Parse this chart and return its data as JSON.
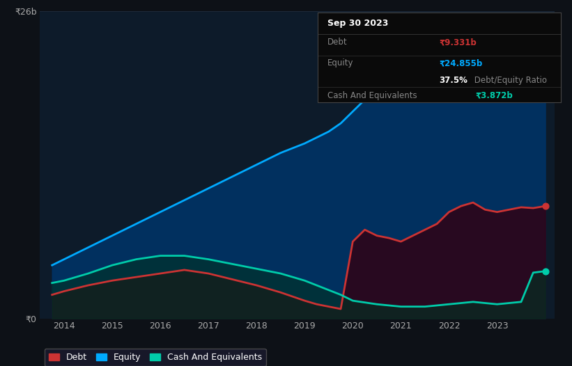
{
  "background_color": "#0d1117",
  "plot_bg": "#0d1b2a",
  "title_box": {
    "date": "Sep 30 2023",
    "rows": [
      {
        "label": "Debt",
        "value": "₹9.331b",
        "value_color": "#cc3333"
      },
      {
        "label": "Equity",
        "value": "₹24.855b",
        "value_color": "#00aaff"
      },
      {
        "label": "",
        "bold_part": "37.5%",
        "plain_part": " Debt/Equity Ratio"
      },
      {
        "label": "Cash And Equivalents",
        "value": "₹3.872b",
        "value_color": "#00ccaa"
      }
    ]
  },
  "ylim": [
    0,
    26
  ],
  "ytick_labels": [
    "₹0",
    "₹26b"
  ],
  "xlim": [
    2013.5,
    2024.2
  ],
  "xtick_labels": [
    "2014",
    "2015",
    "2016",
    "2017",
    "2018",
    "2019",
    "2020",
    "2021",
    "2022",
    "2023"
  ],
  "xtick_positions": [
    2014,
    2015,
    2016,
    2017,
    2018,
    2019,
    2020,
    2021,
    2022,
    2023
  ],
  "grid_color": "#1e2a3a",
  "equity": {
    "x": [
      2013.75,
      2014.0,
      2014.5,
      2015.0,
      2015.5,
      2016.0,
      2016.5,
      2017.0,
      2017.5,
      2018.0,
      2018.5,
      2019.0,
      2019.5,
      2019.75,
      2020.0,
      2020.5,
      2021.0,
      2021.5,
      2022.0,
      2022.5,
      2023.0,
      2023.5,
      2023.75,
      2024.0
    ],
    "y": [
      4.5,
      5.0,
      6.0,
      7.0,
      8.0,
      9.0,
      10.0,
      11.0,
      12.0,
      13.0,
      14.0,
      14.8,
      15.8,
      16.5,
      17.5,
      19.5,
      21.0,
      22.0,
      22.8,
      23.5,
      24.0,
      24.6,
      24.855,
      25.3
    ],
    "color": "#00aaff",
    "fill_color": "#003366",
    "linewidth": 2.0
  },
  "debt": {
    "x": [
      2013.75,
      2014.0,
      2014.5,
      2015.0,
      2015.5,
      2016.0,
      2016.5,
      2017.0,
      2017.5,
      2018.0,
      2018.5,
      2019.0,
      2019.25,
      2019.5,
      2019.75,
      2020.0,
      2020.25,
      2020.5,
      2020.75,
      2021.0,
      2021.25,
      2021.5,
      2021.75,
      2022.0,
      2022.25,
      2022.5,
      2022.75,
      2023.0,
      2023.25,
      2023.5,
      2023.75,
      2024.0
    ],
    "y": [
      2.0,
      2.3,
      2.8,
      3.2,
      3.5,
      3.8,
      4.1,
      3.8,
      3.3,
      2.8,
      2.2,
      1.5,
      1.2,
      1.0,
      0.8,
      6.5,
      7.5,
      7.0,
      6.8,
      6.5,
      7.0,
      7.5,
      8.0,
      9.0,
      9.5,
      9.8,
      9.2,
      9.0,
      9.2,
      9.4,
      9.331,
      9.5
    ],
    "color": "#cc3333",
    "fill_color": "#330011",
    "linewidth": 2.0
  },
  "cash": {
    "x": [
      2013.75,
      2014.0,
      2014.5,
      2015.0,
      2015.5,
      2016.0,
      2016.5,
      2017.0,
      2017.5,
      2018.0,
      2018.5,
      2019.0,
      2019.5,
      2019.75,
      2020.0,
      2020.5,
      2021.0,
      2021.5,
      2022.0,
      2022.5,
      2023.0,
      2023.5,
      2023.75,
      2024.0
    ],
    "y": [
      3.0,
      3.2,
      3.8,
      4.5,
      5.0,
      5.3,
      5.3,
      5.0,
      4.6,
      4.2,
      3.8,
      3.2,
      2.4,
      2.0,
      1.5,
      1.2,
      1.0,
      1.0,
      1.2,
      1.4,
      1.2,
      1.4,
      3.872,
      4.0
    ],
    "color": "#00ccaa",
    "fill_color": "#003322",
    "linewidth": 2.0
  },
  "legend": [
    {
      "label": "Debt",
      "color": "#cc3333"
    },
    {
      "label": "Equity",
      "color": "#00aaff"
    },
    {
      "label": "Cash And Equivalents",
      "color": "#00ccaa"
    }
  ]
}
